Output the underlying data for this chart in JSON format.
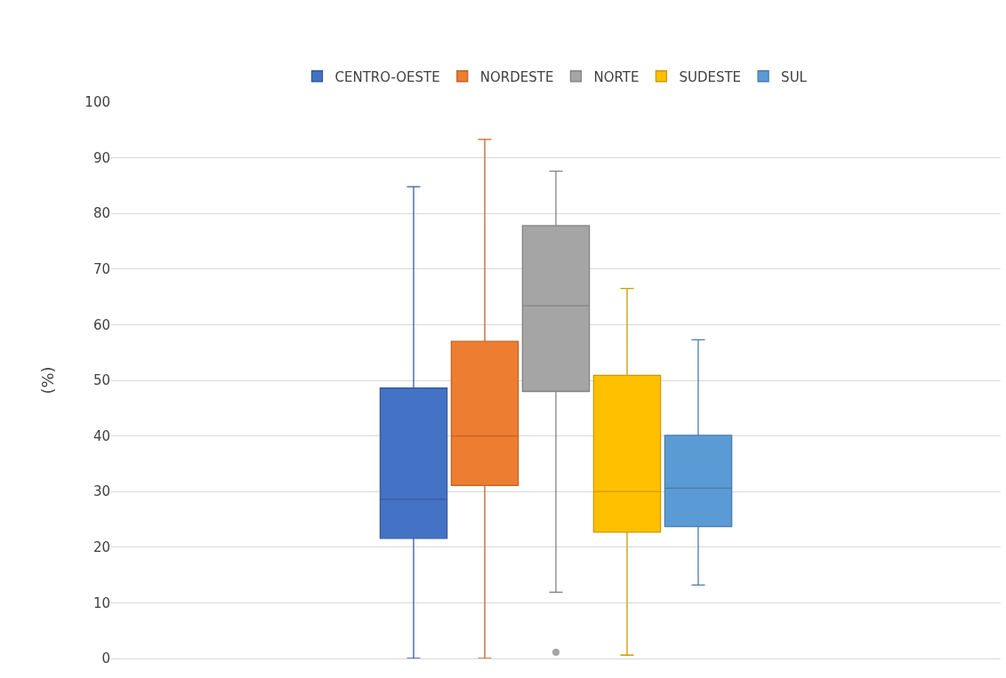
{
  "chart_data": {
    "type": "box",
    "ylabel": "(%)",
    "categories": [
      null
    ],
    "ylim": [
      0,
      100
    ],
    "yticks": [
      0,
      10,
      20,
      30,
      40,
      50,
      60,
      70,
      80,
      90,
      100
    ],
    "grid": "y",
    "legend": "top",
    "tick_labels": "y",
    "series": [
      {
        "name": "CENTRO-OESTE",
        "color": "#4472c4",
        "boxes": [
          {
            "low": 0,
            "q1": 21.6,
            "median": 28.6,
            "q3": 48.6,
            "high": 84.8
          }
        ]
      },
      {
        "name": "NORDESTE",
        "color": "#ed7d31",
        "boxes": [
          {
            "low": 0,
            "q1": 31.1,
            "median": 40,
            "q3": 57,
            "high": 93.3
          }
        ]
      },
      {
        "name": "NORTE",
        "color": "#a5a5a5",
        "boxes": [
          {
            "low": 11.9,
            "q1": 48,
            "median": 63.4,
            "q3": 77.8,
            "high": 87.6,
            "outliers": [
              1.1
            ]
          }
        ]
      },
      {
        "name": "SUDESTE",
        "color": "#ffc000",
        "boxes": [
          {
            "low": 0.6,
            "q1": 22.7,
            "median": 30,
            "q3": 50.9,
            "high": 66.5
          }
        ]
      },
      {
        "name": "SUL",
        "color": "#5b9bd5",
        "boxes": [
          {
            "low": 13.2,
            "q1": 23.7,
            "median": 30.6,
            "q3": 40.1,
            "high": 57.3
          }
        ]
      }
    ]
  }
}
